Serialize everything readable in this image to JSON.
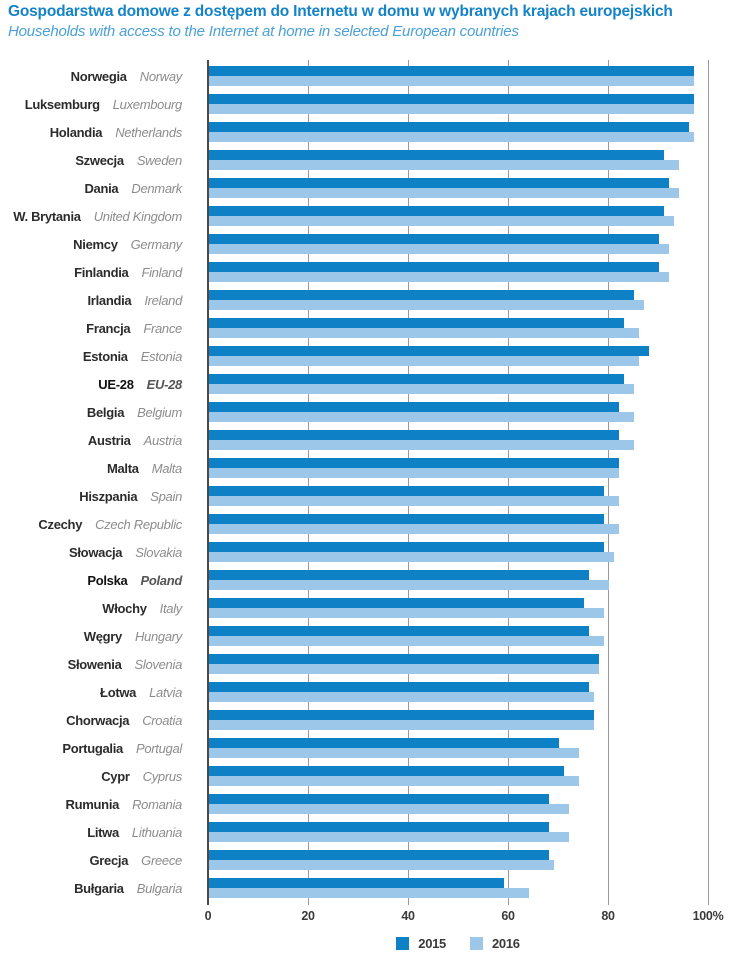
{
  "title": "Gospodarstwa domowe z dostępem do Internetu w domu w wybranych krajach europejskich",
  "subtitle": "Households with access to the Internet at home in selected European countries",
  "colors": {
    "bar_2015": "#0e81c6",
    "bar_2016": "#9dc7e9",
    "gridline": "#999999",
    "zero_axis": "#4a4a4a",
    "title": "#1583c8",
    "subtitle": "#4aa0d8",
    "label_pl": "#2b2b2b",
    "label_en": "#8c8c8c",
    "tick_text": "#3a3a3a"
  },
  "chart_data": {
    "type": "bar",
    "orientation": "horizontal",
    "title": "Gospodarstwa domowe z dostępem do Internetu w domu w wybranych krajach europejskich",
    "subtitle_en": "Households with access to the Internet at home in selected European countries",
    "unit": "%",
    "xlim": [
      0,
      100
    ],
    "xticks": [
      {
        "value": 0,
        "label": "0"
      },
      {
        "value": 20,
        "label": "20"
      },
      {
        "value": 40,
        "label": "40"
      },
      {
        "value": 60,
        "label": "60"
      },
      {
        "value": 80,
        "label": "80"
      },
      {
        "value": 100,
        "label": "100%"
      }
    ],
    "grid": "vertical-gray-lines",
    "legend_position": "bottom-center",
    "series_names": [
      "2015",
      "2016"
    ],
    "countries": [
      {
        "pl": "Norwegia",
        "en": "Norway",
        "v2015": 97,
        "v2016": 97,
        "bold": false
      },
      {
        "pl": "Luksemburg",
        "en": "Luxembourg",
        "v2015": 97,
        "v2016": 97,
        "bold": false
      },
      {
        "pl": "Holandia",
        "en": "Netherlands",
        "v2015": 96,
        "v2016": 97,
        "bold": false
      },
      {
        "pl": "Szwecja",
        "en": "Sweden",
        "v2015": 91,
        "v2016": 94,
        "bold": false
      },
      {
        "pl": "Dania",
        "en": "Denmark",
        "v2015": 92,
        "v2016": 94,
        "bold": false
      },
      {
        "pl": "W. Brytania",
        "en": "United Kingdom",
        "v2015": 91,
        "v2016": 93,
        "bold": false
      },
      {
        "pl": "Niemcy",
        "en": "Germany",
        "v2015": 90,
        "v2016": 92,
        "bold": false
      },
      {
        "pl": "Finlandia",
        "en": "Finland",
        "v2015": 90,
        "v2016": 92,
        "bold": false
      },
      {
        "pl": "Irlandia",
        "en": "Ireland",
        "v2015": 85,
        "v2016": 87,
        "bold": false
      },
      {
        "pl": "Francja",
        "en": "France",
        "v2015": 83,
        "v2016": 86,
        "bold": false
      },
      {
        "pl": "Estonia",
        "en": "Estonia",
        "v2015": 88,
        "v2016": 86,
        "bold": false
      },
      {
        "pl": "UE-28",
        "en": "EU-28",
        "v2015": 83,
        "v2016": 85,
        "bold": true
      },
      {
        "pl": "Belgia",
        "en": "Belgium",
        "v2015": 82,
        "v2016": 85,
        "bold": false
      },
      {
        "pl": "Austria",
        "en": "Austria",
        "v2015": 82,
        "v2016": 85,
        "bold": false
      },
      {
        "pl": "Malta",
        "en": "Malta",
        "v2015": 82,
        "v2016": 82,
        "bold": false
      },
      {
        "pl": "Hiszpania",
        "en": "Spain",
        "v2015": 79,
        "v2016": 82,
        "bold": false
      },
      {
        "pl": "Czechy",
        "en": "Czech Republic",
        "v2015": 79,
        "v2016": 82,
        "bold": false
      },
      {
        "pl": "Słowacja",
        "en": "Slovakia",
        "v2015": 79,
        "v2016": 81,
        "bold": false
      },
      {
        "pl": "Polska",
        "en": "Poland",
        "v2015": 76,
        "v2016": 80,
        "bold": true
      },
      {
        "pl": "Włochy",
        "en": "Italy",
        "v2015": 75,
        "v2016": 79,
        "bold": false
      },
      {
        "pl": "Węgry",
        "en": "Hungary",
        "v2015": 76,
        "v2016": 79,
        "bold": false
      },
      {
        "pl": "Słowenia",
        "en": "Slovenia",
        "v2015": 78,
        "v2016": 78,
        "bold": false
      },
      {
        "pl": "Łotwa",
        "en": "Latvia",
        "v2015": 76,
        "v2016": 77,
        "bold": false
      },
      {
        "pl": "Chorwacja",
        "en": "Croatia",
        "v2015": 77,
        "v2016": 77,
        "bold": false
      },
      {
        "pl": "Portugalia",
        "en": "Portugal",
        "v2015": 70,
        "v2016": 74,
        "bold": false
      },
      {
        "pl": "Cypr",
        "en": "Cyprus",
        "v2015": 71,
        "v2016": 74,
        "bold": false
      },
      {
        "pl": "Rumunia",
        "en": "Romania",
        "v2015": 68,
        "v2016": 72,
        "bold": false
      },
      {
        "pl": "Litwa",
        "en": "Lithuania",
        "v2015": 68,
        "v2016": 72,
        "bold": false
      },
      {
        "pl": "Grecja",
        "en": "Greece",
        "v2015": 68,
        "v2016": 69,
        "bold": false
      },
      {
        "pl": "Bułgaria",
        "en": "Bulgaria",
        "v2015": 59,
        "v2016": 64,
        "bold": false
      }
    ]
  },
  "legend": [
    {
      "label": "2015",
      "color": "#0e81c6"
    },
    {
      "label": "2016",
      "color": "#9dc7e9"
    }
  ]
}
